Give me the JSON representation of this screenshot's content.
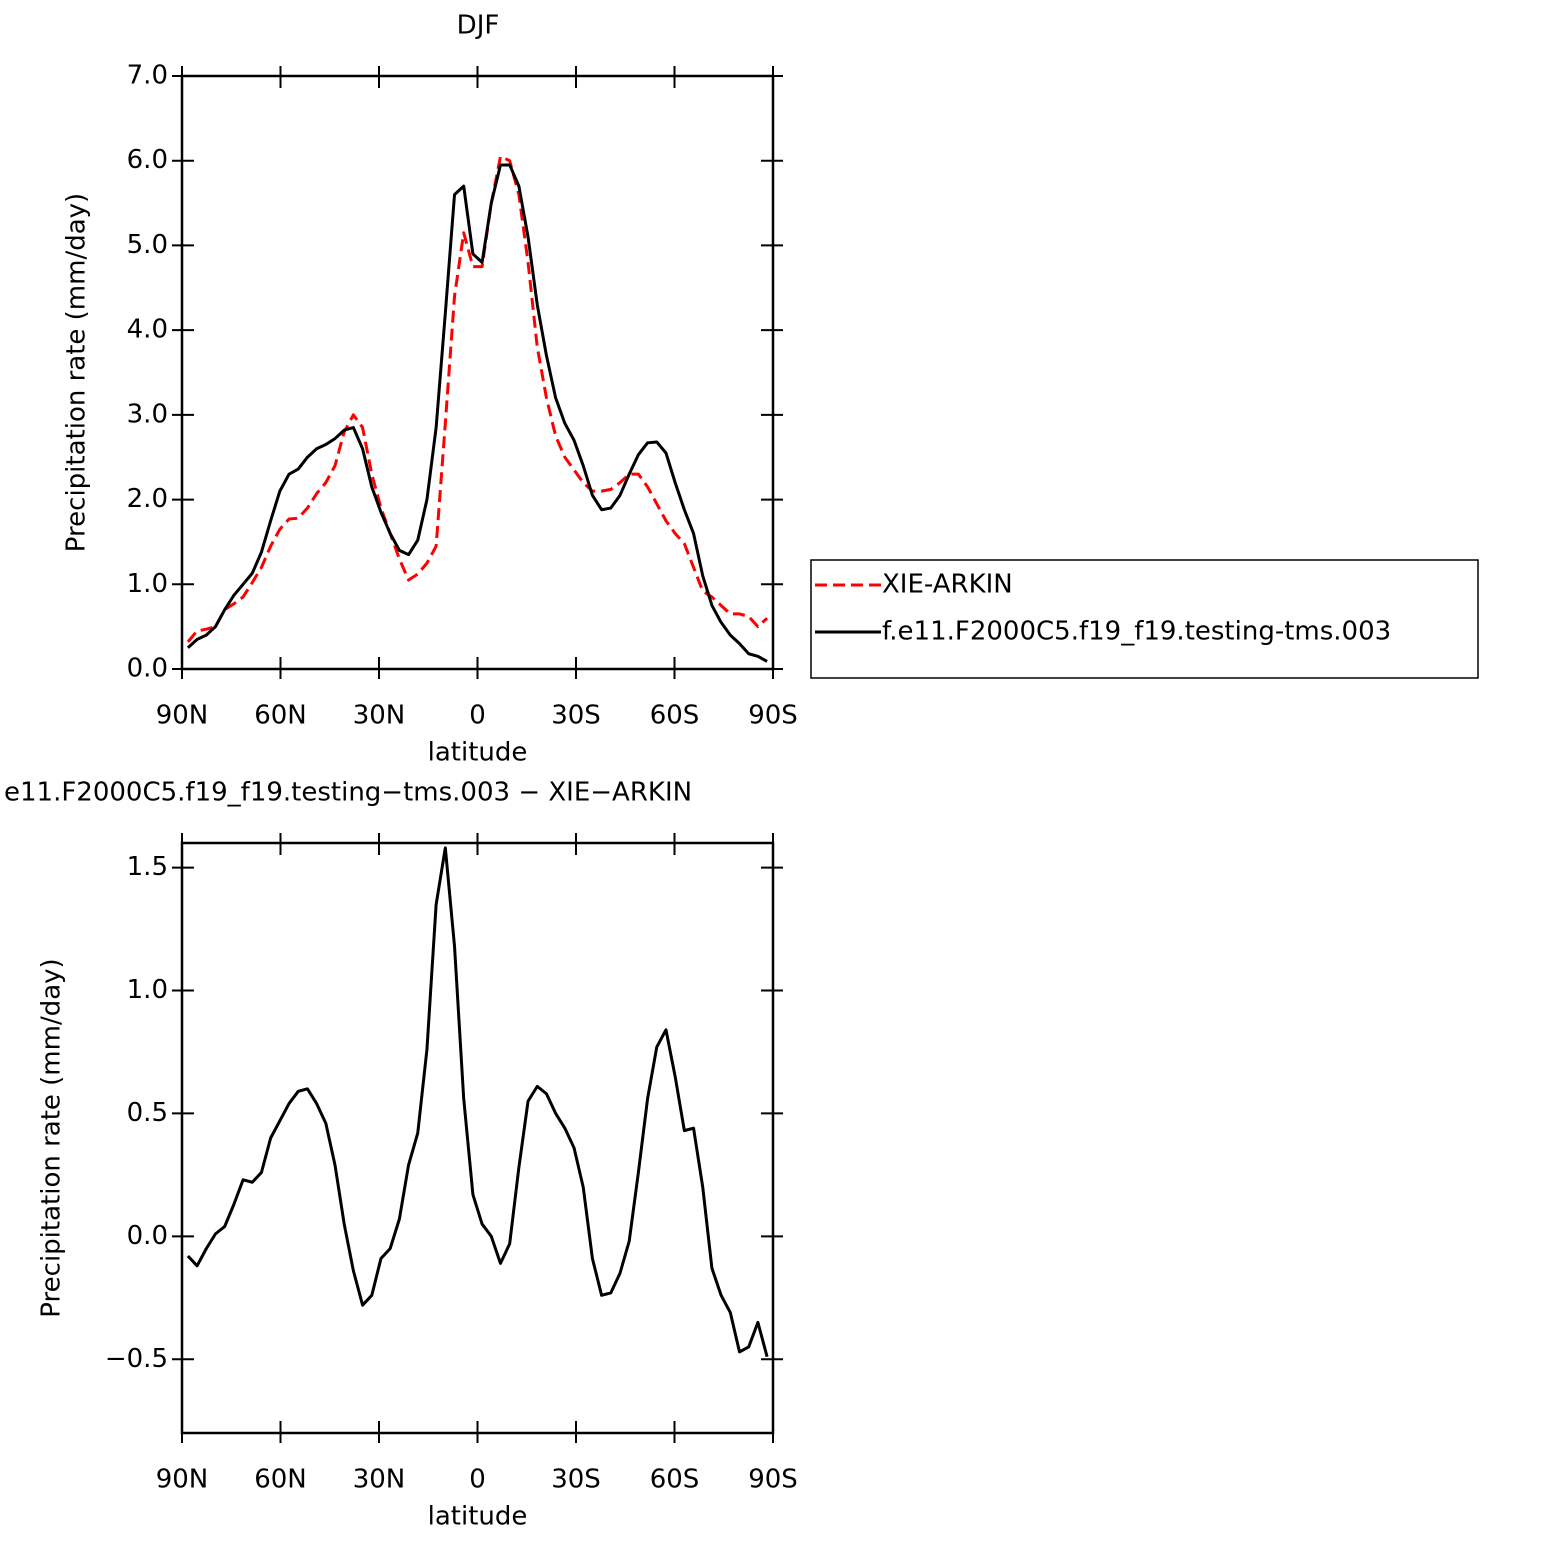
{
  "chart_data": [
    {
      "type": "line",
      "title": "DJF",
      "xlabel": "latitude",
      "ylabel": "Precipitation rate (mm/day)",
      "x": [
        88.2,
        85.4,
        82.6,
        79.8,
        77.0,
        74.2,
        71.4,
        68.6,
        65.8,
        63.0,
        60.2,
        57.4,
        54.6,
        51.8,
        49.0,
        46.2,
        43.4,
        40.6,
        37.8,
        35.0,
        32.2,
        29.4,
        26.6,
        23.8,
        21.0,
        18.2,
        15.4,
        12.6,
        9.8,
        7.0,
        4.2,
        1.4,
        -1.4,
        -4.2,
        -7.0,
        -9.8,
        -12.6,
        -15.4,
        -18.2,
        -21.0,
        -23.8,
        -26.6,
        -29.4,
        -32.2,
        -35.0,
        -37.8,
        -40.6,
        -43.4,
        -46.2,
        -49.0,
        -51.8,
        -54.6,
        -57.4,
        -60.2,
        -63.0,
        -65.8,
        -68.6,
        -71.4,
        -74.2,
        -77.0,
        -79.8,
        -82.6,
        -85.4,
        -88.2
      ],
      "series": [
        {
          "name": "XIE-ARKIN",
          "color": "#ff0000",
          "line_style": "dashed",
          "values": [
            0.32,
            0.45,
            0.47,
            0.5,
            0.7,
            0.77,
            0.85,
            1.02,
            1.2,
            1.45,
            1.65,
            1.77,
            1.78,
            1.9,
            2.07,
            2.2,
            2.4,
            2.8,
            3.0,
            2.85,
            2.3,
            1.9,
            1.6,
            1.3,
            1.05,
            1.12,
            1.25,
            1.45,
            2.9,
            4.4,
            5.15,
            4.75,
            4.75,
            5.5,
            6.05,
            6.0,
            5.6,
            4.8,
            3.8,
            3.2,
            2.75,
            2.5,
            2.35,
            2.2,
            2.1,
            2.1,
            2.12,
            2.2,
            2.3,
            2.3,
            2.15,
            1.95,
            1.75,
            1.6,
            1.48,
            1.2,
            0.92,
            0.85,
            0.75,
            0.65,
            0.65,
            0.62,
            0.5,
            0.6
          ]
        },
        {
          "name": "f.e11.F2000C5.f19_f19.testing-tms.003",
          "color": "#000000",
          "line_style": "solid",
          "values": [
            0.25,
            0.35,
            0.4,
            0.5,
            0.7,
            0.87,
            1.0,
            1.13,
            1.38,
            1.75,
            2.1,
            2.3,
            2.36,
            2.5,
            2.6,
            2.65,
            2.72,
            2.82,
            2.85,
            2.6,
            2.15,
            1.85,
            1.6,
            1.4,
            1.35,
            1.52,
            2.0,
            2.85,
            4.2,
            5.6,
            5.7,
            4.9,
            4.8,
            5.5,
            5.95,
            5.95,
            5.7,
            5.1,
            4.3,
            3.7,
            3.2,
            2.9,
            2.7,
            2.4,
            2.05,
            1.88,
            1.9,
            2.05,
            2.3,
            2.53,
            2.67,
            2.68,
            2.55,
            2.2,
            1.88,
            1.6,
            1.1,
            0.75,
            0.55,
            0.4,
            0.3,
            0.18,
            0.15,
            0.09
          ]
        }
      ],
      "xlim": [
        90,
        -90
      ],
      "xticks": [
        {
          "value": 90,
          "label": "90N"
        },
        {
          "value": 60,
          "label": "60N"
        },
        {
          "value": 30,
          "label": "30N"
        },
        0,
        {
          "value": -30,
          "label": "30S"
        },
        {
          "value": -60,
          "label": "60S"
        },
        {
          "value": -90,
          "label": "90S"
        }
      ],
      "ylim": [
        0,
        7
      ],
      "yticks": [
        {
          "value": 0,
          "label": "0.0"
        },
        {
          "value": 1,
          "label": "1.0"
        },
        {
          "value": 2,
          "label": "2.0"
        },
        {
          "value": 3,
          "label": "3.0"
        },
        {
          "value": 4,
          "label": "4.0"
        },
        {
          "value": 5,
          "label": "5.0"
        },
        {
          "value": 6,
          "label": "6.0"
        },
        {
          "value": 7,
          "label": "7.0"
        }
      ],
      "legend": "right"
    },
    {
      "type": "line",
      "title": "e11.F2000C5.f19_f19.testing−tms.003 − XIE−ARKIN",
      "xlabel": "latitude",
      "ylabel": "Precipitation rate (mm/day)",
      "x": [
        88.2,
        85.4,
        82.6,
        79.8,
        77.0,
        74.2,
        71.4,
        68.6,
        65.8,
        63.0,
        60.2,
        57.4,
        54.6,
        51.8,
        49.0,
        46.2,
        43.4,
        40.6,
        37.8,
        35.0,
        32.2,
        29.4,
        26.6,
        23.8,
        21.0,
        18.2,
        15.4,
        12.6,
        9.8,
        7.0,
        4.2,
        1.4,
        -1.4,
        -4.2,
        -7.0,
        -9.8,
        -12.6,
        -15.4,
        -18.2,
        -21.0,
        -23.8,
        -26.6,
        -29.4,
        -32.2,
        -35.0,
        -37.8,
        -40.6,
        -43.4,
        -46.2,
        -49.0,
        -51.8,
        -54.6,
        -57.4,
        -60.2,
        -63.0,
        -65.8,
        -68.6,
        -71.4,
        -74.2,
        -77.0,
        -79.8,
        -82.6,
        -85.4,
        -88.2
      ],
      "series": [
        {
          "color": "#000000",
          "line_style": "solid",
          "values": [
            -0.08,
            -0.12,
            -0.05,
            0.01,
            0.04,
            0.13,
            0.23,
            0.22,
            0.26,
            0.4,
            0.47,
            0.54,
            0.59,
            0.6,
            0.54,
            0.46,
            0.29,
            0.05,
            -0.14,
            -0.28,
            -0.24,
            -0.09,
            -0.05,
            0.07,
            0.29,
            0.42,
            0.76,
            1.35,
            1.58,
            1.18,
            0.56,
            0.17,
            0.05,
            0.0,
            -0.11,
            -0.03,
            0.28,
            0.55,
            0.61,
            0.58,
            0.5,
            0.44,
            0.36,
            0.2,
            -0.09,
            -0.24,
            -0.23,
            -0.15,
            -0.02,
            0.26,
            0.56,
            0.77,
            0.84,
            0.65,
            0.43,
            0.44,
            0.2,
            -0.13,
            -0.24,
            -0.31,
            -0.47,
            -0.45,
            -0.35,
            -0.49
          ]
        }
      ],
      "xlim": [
        90,
        -90
      ],
      "xticks": [
        {
          "value": 90,
          "label": "90N"
        },
        {
          "value": 60,
          "label": "60N"
        },
        {
          "value": 30,
          "label": "30N"
        },
        0,
        {
          "value": -30,
          "label": "30S"
        },
        {
          "value": -60,
          "label": "60S"
        },
        {
          "value": -90,
          "label": "90S"
        }
      ],
      "ylim": [
        -0.8,
        1.6
      ],
      "yticks": [
        {
          "value": -0.5,
          "label": "−0.5"
        },
        {
          "value": 0,
          "label": "0.0"
        },
        0.5,
        {
          "value": 1,
          "label": "1.0"
        },
        1.5
      ]
    }
  ]
}
